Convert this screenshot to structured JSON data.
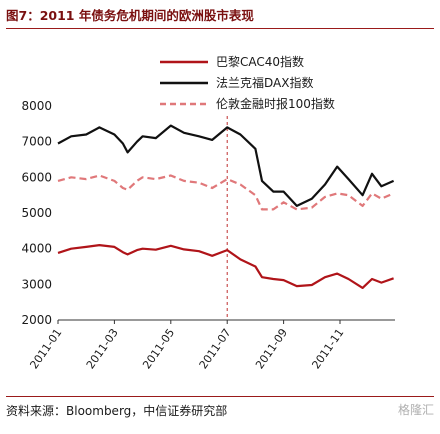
{
  "title": "图7：2011 年债务危机期间的欧洲股市表现",
  "source": "资料来源：Bloomberg，中信证券研究部",
  "watermark": "格隆汇",
  "colors": {
    "cac": "#b01419",
    "dax": "#111111",
    "ftse": "#e0787a",
    "marker": "#c03030"
  },
  "chart_data": {
    "type": "line",
    "title": "",
    "xlabel": "",
    "ylabel": "",
    "ylim": [
      2000,
      8000
    ],
    "yticks": [
      2000,
      3000,
      4000,
      5000,
      6000,
      7000,
      8000
    ],
    "xlim": [
      "2011-01",
      "2011-12"
    ],
    "xticks": [
      "2011-01",
      "2011-03",
      "2011-05",
      "2011-07",
      "2011-09",
      "2011-11"
    ],
    "legend_position": "top-right",
    "annotation_vline": "2011-07",
    "series": [
      {
        "name": "巴黎CAC40指数",
        "style": "solid",
        "color_key": "cac",
        "points": [
          [
            "2011-01-01",
            3880
          ],
          [
            "2011-01-15",
            4000
          ],
          [
            "2011-02-01",
            4050
          ],
          [
            "2011-02-15",
            4100
          ],
          [
            "2011-03-01",
            4050
          ],
          [
            "2011-03-10",
            3900
          ],
          [
            "2011-03-15",
            3840
          ],
          [
            "2011-03-25",
            3960
          ],
          [
            "2011-04-01",
            4000
          ],
          [
            "2011-04-15",
            3970
          ],
          [
            "2011-05-01",
            4080
          ],
          [
            "2011-05-15",
            3980
          ],
          [
            "2011-06-01",
            3930
          ],
          [
            "2011-06-15",
            3800
          ],
          [
            "2011-07-01",
            3960
          ],
          [
            "2011-07-15",
            3700
          ],
          [
            "2011-08-01",
            3500
          ],
          [
            "2011-08-08",
            3200
          ],
          [
            "2011-08-20",
            3150
          ],
          [
            "2011-09-01",
            3120
          ],
          [
            "2011-09-15",
            2950
          ],
          [
            "2011-10-01",
            2980
          ],
          [
            "2011-10-15",
            3200
          ],
          [
            "2011-10-28",
            3300
          ],
          [
            "2011-11-10",
            3150
          ],
          [
            "2011-11-25",
            2900
          ],
          [
            "2011-12-05",
            3150
          ],
          [
            "2011-12-15",
            3050
          ],
          [
            "2011-12-28",
            3170
          ]
        ]
      },
      {
        "name": "法兰克福DAX指数",
        "style": "solid",
        "color_key": "dax",
        "points": [
          [
            "2011-01-01",
            6950
          ],
          [
            "2011-01-15",
            7150
          ],
          [
            "2011-02-01",
            7200
          ],
          [
            "2011-02-15",
            7400
          ],
          [
            "2011-03-01",
            7200
          ],
          [
            "2011-03-10",
            6950
          ],
          [
            "2011-03-15",
            6700
          ],
          [
            "2011-03-25",
            7000
          ],
          [
            "2011-04-01",
            7150
          ],
          [
            "2011-04-15",
            7100
          ],
          [
            "2011-05-01",
            7450
          ],
          [
            "2011-05-15",
            7250
          ],
          [
            "2011-06-01",
            7150
          ],
          [
            "2011-06-15",
            7050
          ],
          [
            "2011-07-01",
            7400
          ],
          [
            "2011-07-15",
            7200
          ],
          [
            "2011-08-01",
            6800
          ],
          [
            "2011-08-08",
            5900
          ],
          [
            "2011-08-20",
            5600
          ],
          [
            "2011-09-01",
            5600
          ],
          [
            "2011-09-15",
            5200
          ],
          [
            "2011-10-01",
            5400
          ],
          [
            "2011-10-15",
            5800
          ],
          [
            "2011-10-28",
            6300
          ],
          [
            "2011-11-10",
            5950
          ],
          [
            "2011-11-25",
            5500
          ],
          [
            "2011-12-05",
            6100
          ],
          [
            "2011-12-15",
            5750
          ],
          [
            "2011-12-28",
            5900
          ]
        ]
      },
      {
        "name": "伦敦金融时报100指数",
        "style": "dashed",
        "color_key": "ftse",
        "points": [
          [
            "2011-01-01",
            5900
          ],
          [
            "2011-01-15",
            6000
          ],
          [
            "2011-02-01",
            5950
          ],
          [
            "2011-02-15",
            6050
          ],
          [
            "2011-03-01",
            5900
          ],
          [
            "2011-03-10",
            5700
          ],
          [
            "2011-03-15",
            5650
          ],
          [
            "2011-03-25",
            5900
          ],
          [
            "2011-04-01",
            6000
          ],
          [
            "2011-04-15",
            5950
          ],
          [
            "2011-05-01",
            6050
          ],
          [
            "2011-05-15",
            5900
          ],
          [
            "2011-06-01",
            5850
          ],
          [
            "2011-06-15",
            5700
          ],
          [
            "2011-07-01",
            5950
          ],
          [
            "2011-07-15",
            5800
          ],
          [
            "2011-08-01",
            5500
          ],
          [
            "2011-08-08",
            5100
          ],
          [
            "2011-08-20",
            5100
          ],
          [
            "2011-09-01",
            5300
          ],
          [
            "2011-09-15",
            5100
          ],
          [
            "2011-10-01",
            5150
          ],
          [
            "2011-10-15",
            5450
          ],
          [
            "2011-10-28",
            5550
          ],
          [
            "2011-11-10",
            5500
          ],
          [
            "2011-11-25",
            5200
          ],
          [
            "2011-12-05",
            5550
          ],
          [
            "2011-12-15",
            5400
          ],
          [
            "2011-12-28",
            5550
          ]
        ]
      }
    ]
  }
}
